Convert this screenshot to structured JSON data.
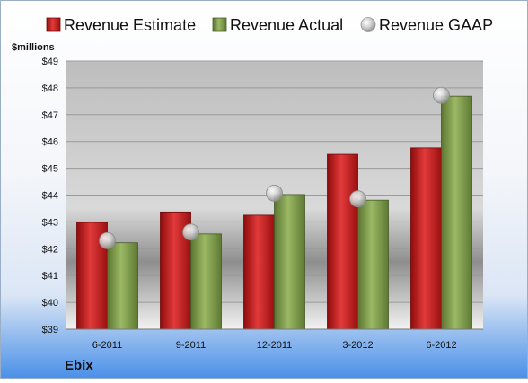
{
  "chart_data": {
    "type": "bar",
    "company": "Ebix",
    "unit_label": "$millions",
    "categories": [
      "6-2011",
      "9-2011",
      "12-2011",
      "3-2012",
      "6-2012"
    ],
    "y_ticks": [
      "$39",
      "$40",
      "$41",
      "$42",
      "$43",
      "$44",
      "$45",
      "$46",
      "$47",
      "$48",
      "$49"
    ],
    "ylim": [
      39,
      49
    ],
    "grid": true,
    "legend_position": "top",
    "series": [
      {
        "name": "Revenue Estimate",
        "kind": "bar",
        "color": "#cc1f1f",
        "values": [
          42.98,
          43.37,
          43.25,
          45.52,
          45.76
        ]
      },
      {
        "name": "Revenue Actual",
        "kind": "bar",
        "color": "#7e9b45",
        "values": [
          42.22,
          42.55,
          44.02,
          43.81,
          47.69
        ]
      },
      {
        "name": "Revenue GAAP",
        "kind": "marker",
        "color": "#c8c8c8",
        "values": [
          42.3,
          42.62,
          44.07,
          43.86,
          47.72
        ]
      }
    ]
  }
}
